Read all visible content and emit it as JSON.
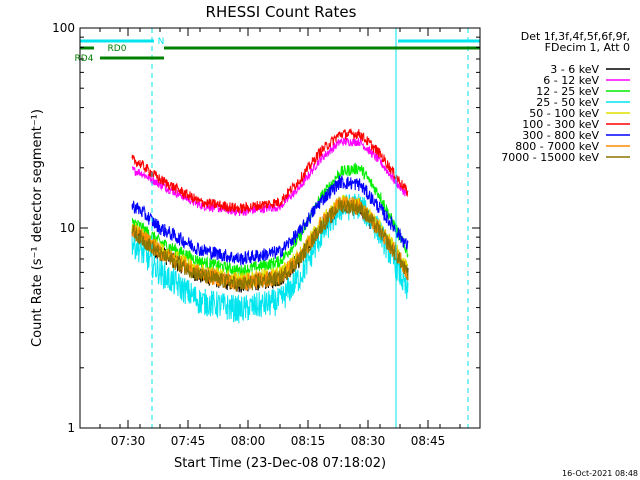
{
  "chart_data": {
    "type": "line",
    "title": "RHESSI Count Rates",
    "xlabel": "Start Time (23-Dec-08 07:18:02)",
    "ylabel": "Count Rate (s⁻¹ detector segment⁻¹)",
    "y_scale": "log",
    "ylim": [
      1,
      100
    ],
    "y_ticks": [
      "1",
      "10",
      "100"
    ],
    "xlim": [
      "07:18",
      "08:58"
    ],
    "x_ticks": [
      "07:30",
      "07:45",
      "08:00",
      "08:15",
      "08:30",
      "08:45"
    ],
    "x_tick_minutes": [
      12,
      27,
      42,
      57,
      72,
      87
    ],
    "x_range_minutes": [
      0,
      100
    ],
    "legend_header": [
      "Det 1f,3f,4f,5f,6f,9f,",
      "FDecim 1, Att 0"
    ],
    "timestamp": "16-Oct-2021 08:48",
    "flags": [
      {
        "label": "N",
        "color": "#00e5ee",
        "segments": [
          [
            0,
            18.5
          ],
          [
            79.5,
            100
          ]
        ]
      },
      {
        "label": "RD0",
        "color": "#008000",
        "segments": [
          [
            0,
            3.5
          ],
          [
            21,
            100
          ]
        ]
      },
      {
        "label": "RD4",
        "color": "#008000",
        "segments": [
          [
            5,
            21
          ]
        ]
      }
    ],
    "vlines": [
      {
        "t": 0,
        "style": "solid",
        "color": "#00e5ee"
      },
      {
        "t": 18,
        "style": "dashed",
        "color": "#00e5ee"
      },
      {
        "t": 79,
        "style": "solid",
        "color": "#00e5ee"
      },
      {
        "t": 97,
        "style": "dashed",
        "color": "#00e5ee"
      }
    ],
    "series": [
      {
        "name": "3 - 6 keV",
        "color": "#000000",
        "t": [
          13,
          15,
          20,
          30,
          40,
          50,
          55,
          60,
          65,
          70,
          75,
          80,
          82
        ],
        "values": [
          9.5,
          9.0,
          7.5,
          5.8,
          5.2,
          5.6,
          7.0,
          10.0,
          13.0,
          12.5,
          9.5,
          6.8,
          5.8
        ]
      },
      {
        "name": "6 - 12 keV",
        "color": "#ff00ff",
        "t": [
          13,
          15,
          20,
          30,
          40,
          50,
          55,
          60,
          65,
          70,
          75,
          80,
          82
        ],
        "values": [
          19.5,
          19.0,
          16.5,
          13.0,
          12.0,
          12.8,
          16.0,
          22.0,
          27.0,
          27.0,
          21.5,
          16.0,
          14.5
        ]
      },
      {
        "name": "12 - 25 keV",
        "color": "#00ee00",
        "t": [
          13,
          15,
          20,
          30,
          40,
          50,
          55,
          60,
          65,
          70,
          75,
          80,
          82
        ],
        "values": [
          10.8,
          10.2,
          8.5,
          6.8,
          6.1,
          6.8,
          9.0,
          14.0,
          19.0,
          20.0,
          14.5,
          9.0,
          7.5
        ]
      },
      {
        "name": "25 - 50 keV",
        "color": "#00e5ee",
        "t": [
          13,
          15,
          20,
          30,
          40,
          50,
          55,
          60,
          65,
          70,
          75,
          80,
          82
        ],
        "values": [
          8.5,
          7.8,
          6.0,
          4.3,
          3.9,
          4.3,
          5.7,
          9.0,
          12.5,
          13.0,
          9.5,
          5.9,
          4.6
        ]
      },
      {
        "name": "50 - 100 keV",
        "color": "#e0e000",
        "t": [
          13,
          15,
          20,
          30,
          40,
          50,
          55,
          60,
          65,
          70,
          75,
          80,
          82
        ],
        "values": [
          10.0,
          9.4,
          7.8,
          6.1,
          5.5,
          5.9,
          7.4,
          10.5,
          13.5,
          13.0,
          10.0,
          7.2,
          6.1
        ]
      },
      {
        "name": "100 - 300 keV",
        "color": "#ff0000",
        "t": [
          13,
          15,
          20,
          30,
          40,
          50,
          55,
          60,
          65,
          70,
          75,
          80,
          82
        ],
        "values": [
          22.0,
          21.0,
          17.5,
          13.5,
          12.5,
          13.5,
          17.5,
          24.0,
          29.5,
          29.5,
          23.5,
          17.0,
          15.0
        ]
      },
      {
        "name": "300 - 800 keV",
        "color": "#0000ff",
        "t": [
          13,
          15,
          20,
          30,
          40,
          50,
          55,
          60,
          65,
          70,
          75,
          80,
          82
        ],
        "values": [
          13.0,
          12.3,
          10.0,
          7.8,
          7.0,
          7.6,
          9.6,
          13.5,
          17.0,
          16.5,
          12.5,
          9.2,
          8.0
        ]
      },
      {
        "name": "800 - 7000 keV",
        "color": "#ff8c00",
        "t": [
          13,
          15,
          20,
          30,
          40,
          50,
          55,
          60,
          65,
          70,
          75,
          80,
          82
        ],
        "values": [
          9.8,
          9.2,
          7.6,
          5.9,
          5.3,
          5.7,
          7.1,
          10.2,
          13.2,
          12.8,
          9.7,
          7.0,
          5.9
        ]
      },
      {
        "name": "7000 - 15000 keV",
        "color": "#8b7500",
        "t": [
          13,
          15,
          20,
          30,
          40,
          50,
          55,
          60,
          65,
          70,
          75,
          80,
          82
        ],
        "values": [
          9.6,
          9.0,
          7.4,
          5.8,
          5.2,
          5.6,
          7.0,
          10.0,
          13.0,
          12.6,
          9.6,
          6.9,
          5.8
        ]
      }
    ]
  }
}
